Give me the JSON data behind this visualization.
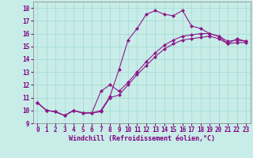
{
  "line1_x": [
    0,
    1,
    2,
    3,
    4,
    5,
    6,
    7,
    8,
    9,
    10,
    11,
    12,
    13,
    14,
    15,
    16,
    17,
    18,
    19,
    20,
    21,
    22,
    23
  ],
  "line1_y": [
    10.6,
    10.0,
    9.9,
    9.6,
    10.0,
    9.8,
    9.8,
    10.0,
    11.1,
    13.2,
    15.5,
    16.4,
    17.5,
    17.8,
    17.5,
    17.4,
    17.8,
    16.6,
    16.4,
    16.0,
    15.8,
    15.2,
    15.6,
    15.4
  ],
  "line2_x": [
    0,
    1,
    2,
    3,
    4,
    5,
    6,
    7,
    8,
    9,
    10,
    11,
    12,
    13,
    14,
    15,
    16,
    17,
    18,
    19,
    20,
    21,
    22,
    23
  ],
  "line2_y": [
    10.6,
    10.0,
    9.9,
    9.6,
    10.0,
    9.8,
    9.8,
    11.5,
    12.0,
    11.5,
    12.2,
    13.0,
    13.8,
    14.5,
    15.1,
    15.5,
    15.8,
    15.9,
    16.0,
    16.0,
    15.8,
    15.4,
    15.5,
    15.4
  ],
  "line3_x": [
    0,
    1,
    2,
    3,
    4,
    5,
    6,
    7,
    8,
    9,
    10,
    11,
    12,
    13,
    14,
    15,
    16,
    17,
    18,
    19,
    20,
    21,
    22,
    23
  ],
  "line3_y": [
    10.6,
    10.0,
    9.9,
    9.6,
    10.0,
    9.8,
    9.8,
    9.9,
    11.0,
    11.2,
    12.0,
    12.8,
    13.5,
    14.2,
    14.8,
    15.2,
    15.5,
    15.6,
    15.7,
    15.8,
    15.6,
    15.2,
    15.3,
    15.3
  ],
  "line_color": "#8B1A8B",
  "marker": "D",
  "markersize": 2.0,
  "linewidth": 0.8,
  "bg_color": "#C8ECE8",
  "grid_color": "#A0D8D0",
  "xlabel": "Windchill (Refroidissement éolien,°C)",
  "xlim": [
    -0.5,
    23.5
  ],
  "ylim": [
    9.0,
    18.5
  ],
  "xticks": [
    0,
    1,
    2,
    3,
    4,
    5,
    6,
    7,
    8,
    9,
    10,
    11,
    12,
    13,
    14,
    15,
    16,
    17,
    18,
    19,
    20,
    21,
    22,
    23
  ],
  "yticks": [
    9,
    10,
    11,
    12,
    13,
    14,
    15,
    16,
    17,
    18
  ],
  "tick_fontsize": 5.5,
  "xlabel_fontsize": 6.0,
  "tick_color": "#800080",
  "label_color": "#800080"
}
